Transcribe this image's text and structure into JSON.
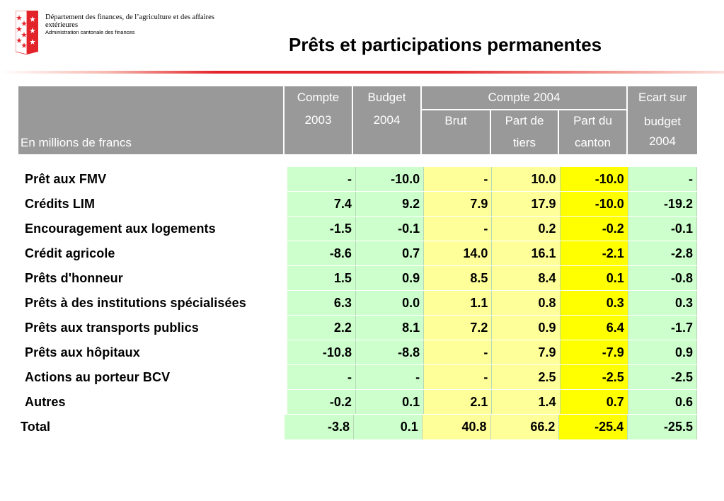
{
  "header": {
    "dept_line1": "Département des finances, de l’agriculture et des affaires",
    "dept_line2": "extérieures",
    "dept_line3": "Administration cantonale des finances",
    "title": "Prêts et participations permanentes"
  },
  "colors": {
    "header_bg": "#999999",
    "green": "#ccffcc",
    "light_yellow": "#ffff99",
    "yellow": "#ffff00",
    "accent_red": "#e3232a"
  },
  "table": {
    "unit_label": "En millions de francs",
    "col_compte2003": [
      "Compte",
      "2003"
    ],
    "col_budget2004": [
      "Budget",
      "2004"
    ],
    "group_compte2004": "Compte 2004",
    "col_brut": "Brut",
    "col_part_tiers": [
      "Part de",
      "tiers"
    ],
    "col_part_canton": [
      "Part du",
      "canton"
    ],
    "col_ecart": [
      "Ecart sur",
      "budget",
      "2004"
    ],
    "rows": [
      {
        "label": "Prêt aux FMV",
        "values": [
          "-",
          "-10.0",
          "-",
          "10.0",
          "-10.0",
          "-"
        ]
      },
      {
        "label": "Crédits LIM",
        "values": [
          "7.4",
          "9.2",
          "7.9",
          "17.9",
          "-10.0",
          "-19.2"
        ]
      },
      {
        "label": "Encouragement aux logements",
        "values": [
          "-1.5",
          "-0.1",
          "-",
          "0.2",
          "-0.2",
          "-0.1"
        ]
      },
      {
        "label": "Crédit agricole",
        "values": [
          "-8.6",
          "0.7",
          "14.0",
          "16.1",
          "-2.1",
          "-2.8"
        ]
      },
      {
        "label": "Prêts d'honneur",
        "values": [
          "1.5",
          "0.9",
          "8.5",
          "8.4",
          "0.1",
          "-0.8"
        ]
      },
      {
        "label": "Prêts à des institutions spécialisées",
        "values": [
          "6.3",
          "0.0",
          "1.1",
          "0.8",
          "0.3",
          "0.3"
        ]
      },
      {
        "label": "Prêts aux transports publics",
        "values": [
          "2.2",
          "8.1",
          "7.2",
          "0.9",
          "6.4",
          "-1.7"
        ]
      },
      {
        "label": "Prêts aux hôpitaux",
        "values": [
          "-10.8",
          "-8.8",
          "-",
          "7.9",
          "-7.9",
          "0.9"
        ]
      },
      {
        "label": "Actions au porteur BCV",
        "values": [
          "-",
          "-",
          "-",
          "2.5",
          "-2.5",
          "-2.5"
        ]
      },
      {
        "label": "Autres",
        "values": [
          "-0.2",
          "0.1",
          "2.1",
          "1.4",
          "0.7",
          "0.6"
        ]
      },
      {
        "label": "Total",
        "values": [
          "-3.8",
          "0.1",
          "40.8",
          "66.2",
          "-25.4",
          "-25.5"
        ],
        "total": true
      }
    ]
  }
}
